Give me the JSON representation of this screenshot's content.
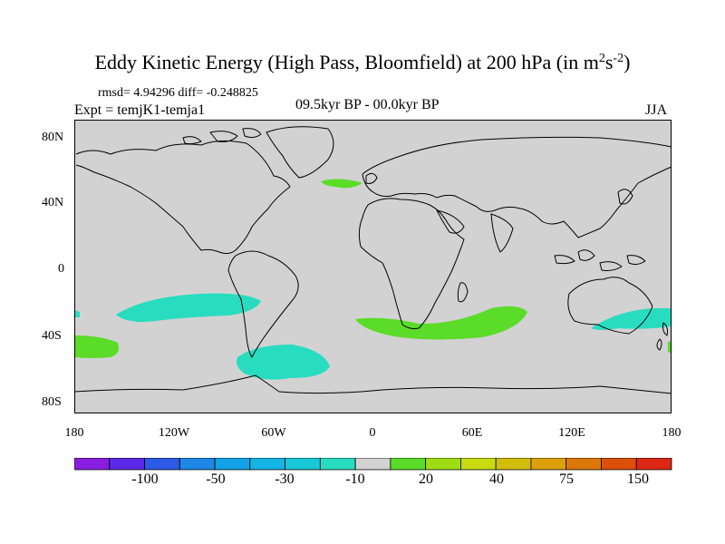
{
  "title": {
    "main": "Eddy Kinetic Energy (High Pass, Bloomfield) at 200 hPa (in m",
    "sup1": "2",
    "mid": "s",
    "sup2": "-2",
    "end": ")"
  },
  "stats": "rmsd= 4.94296 diff= -0.248825",
  "expt": "Expt = temjK1-temja1",
  "period": "09.5kyr BP - 00.0kyr BP",
  "season": "JJA",
  "lat_labels": [
    "80N",
    "40N",
    "0",
    "40S",
    "80S"
  ],
  "lon_labels": [
    "180",
    "120W",
    "60W",
    "0",
    "60E",
    "120E",
    "180"
  ],
  "colorbar": {
    "labels": [
      "-100",
      "-50",
      "-30",
      "-10",
      "20",
      "40",
      "75",
      "150"
    ],
    "colors": [
      "#8a1ee0",
      "#5a28e6",
      "#2a5ae6",
      "#1e87e6",
      "#14a0e6",
      "#14b4e6",
      "#18c8d6",
      "#28dcc0",
      "#d2d2d2",
      "#5adc28",
      "#a0dc14",
      "#c8dc10",
      "#d2be0a",
      "#dca00a",
      "#dc780a",
      "#dc500a",
      "#dc2814"
    ]
  },
  "colors": {
    "ocean_land": "#d2d2d2",
    "positive_small": "#5adc28",
    "negative_small": "#28dcc0"
  }
}
